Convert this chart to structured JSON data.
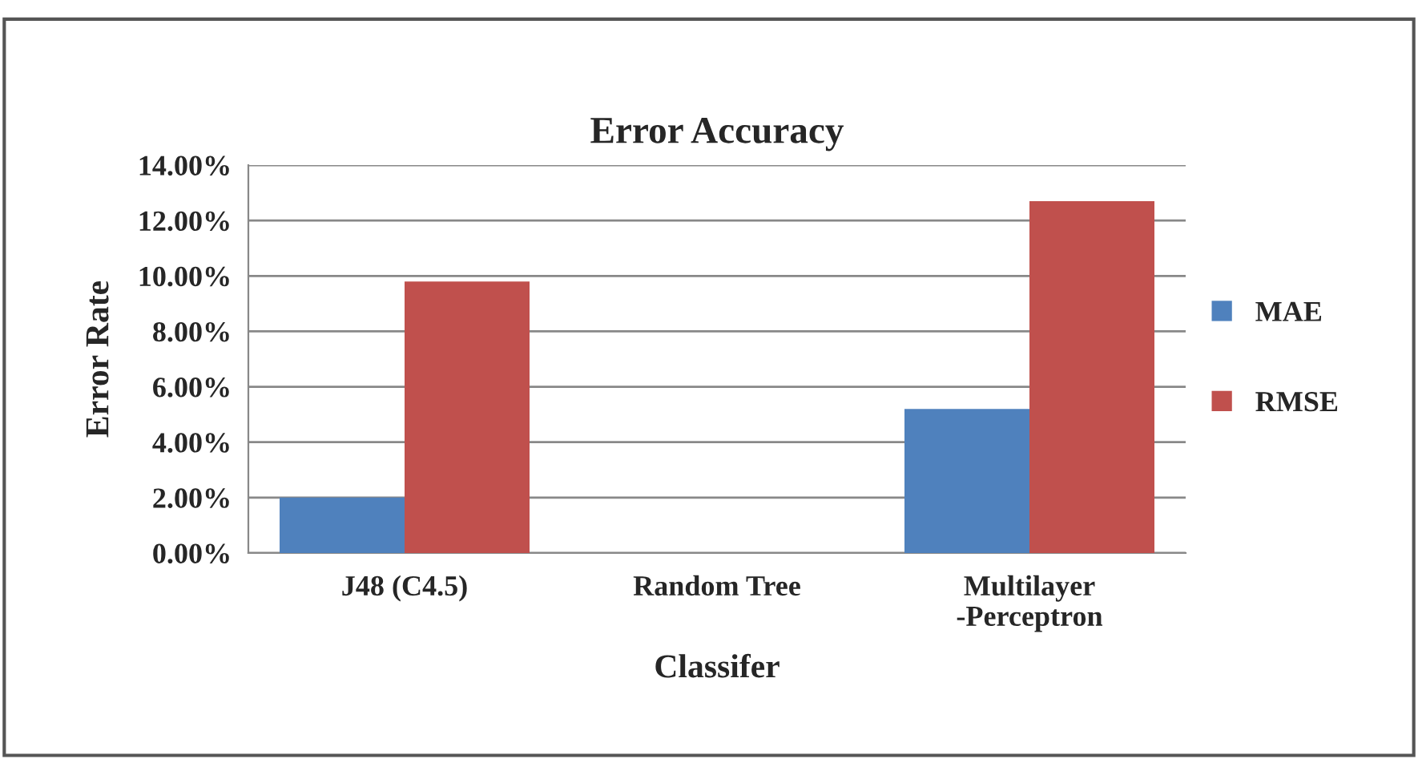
{
  "chart_data": {
    "type": "bar",
    "title": "Error Accuracy",
    "xlabel": "Classifer",
    "ylabel": "Error Rate",
    "categories": [
      "J48 (C4.5)",
      "Random Tree",
      "Multilayer\n-Perceptron"
    ],
    "series": [
      {
        "name": "MAE",
        "color": "#4f81bd",
        "values": [
          2.0,
          null,
          5.2
        ]
      },
      {
        "name": "RMSE",
        "color": "#c0504d",
        "values": [
          9.8,
          null,
          12.7
        ]
      }
    ],
    "ylim": [
      0,
      14
    ],
    "yticks": [
      {
        "value": 0,
        "label": "0.00%"
      },
      {
        "value": 2,
        "label": "2.00%"
      },
      {
        "value": 4,
        "label": "4.00%"
      },
      {
        "value": 6,
        "label": "6.00%"
      },
      {
        "value": 8,
        "label": "8.00%"
      },
      {
        "value": 10,
        "label": "10.00%"
      },
      {
        "value": 12,
        "label": "12.00%"
      },
      {
        "value": 14,
        "label": "14.00%"
      }
    ],
    "grid": "y",
    "legend": "right"
  }
}
